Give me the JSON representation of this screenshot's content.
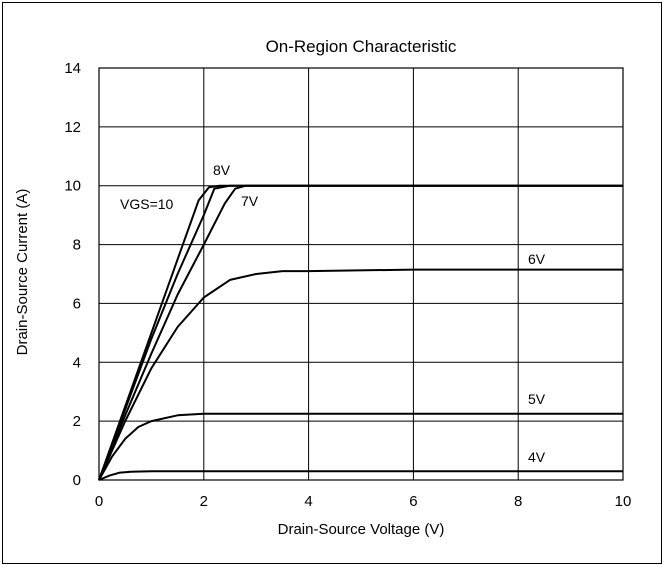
{
  "chart_data": {
    "type": "line",
    "title": "On-Region Characteristic",
    "xlabel": "Drain-Source Voltage (V)",
    "ylabel": "Drain-Source Current (A)",
    "xlim": [
      0,
      10
    ],
    "ylim": [
      0,
      14
    ],
    "x_ticks": [
      0,
      2,
      4,
      6,
      8,
      10
    ],
    "y_ticks": [
      0,
      2,
      4,
      6,
      8,
      10,
      12,
      14
    ],
    "grid": true,
    "line_color": "#000000",
    "series": [
      {
        "name": "VGS=10",
        "x": [
          0,
          0.5,
          1.0,
          1.5,
          1.9,
          2.1,
          2.3,
          4,
          6,
          8,
          10
        ],
        "values": [
          0,
          2.5,
          5.0,
          7.5,
          9.5,
          9.95,
          10,
          10,
          10,
          10,
          10
        ]
      },
      {
        "name": "8V",
        "x": [
          0,
          0.5,
          1.0,
          1.5,
          2.0,
          2.2,
          2.5,
          4,
          6,
          8,
          10
        ],
        "values": [
          0,
          2.4,
          4.8,
          7.0,
          9.0,
          9.9,
          10,
          10,
          10,
          10,
          10
        ]
      },
      {
        "name": "7V",
        "x": [
          0,
          0.5,
          1.0,
          1.5,
          2.0,
          2.4,
          2.6,
          2.8,
          4,
          6,
          8,
          10
        ],
        "values": [
          0,
          2.2,
          4.3,
          6.3,
          8.0,
          9.4,
          9.9,
          10,
          10,
          10,
          10,
          10
        ]
      },
      {
        "name": "6V",
        "x": [
          0,
          0.5,
          1.0,
          1.5,
          2.0,
          2.5,
          3.0,
          3.5,
          4,
          6,
          8,
          10
        ],
        "values": [
          0,
          2.0,
          3.8,
          5.2,
          6.2,
          6.8,
          7.0,
          7.1,
          7.1,
          7.15,
          7.15,
          7.15
        ]
      },
      {
        "name": "5V",
        "x": [
          0,
          0.25,
          0.5,
          0.75,
          1.0,
          1.5,
          2.0,
          4,
          6,
          8,
          10
        ],
        "values": [
          0,
          0.8,
          1.4,
          1.8,
          2.0,
          2.2,
          2.25,
          2.25,
          2.25,
          2.25,
          2.25
        ]
      },
      {
        "name": "4V",
        "x": [
          0,
          0.2,
          0.4,
          0.6,
          1.0,
          2.0,
          4,
          6,
          8,
          10
        ],
        "values": [
          0,
          0.15,
          0.25,
          0.28,
          0.3,
          0.3,
          0.3,
          0.3,
          0.3,
          0.3
        ]
      }
    ],
    "labels": [
      "VGS=10",
      "8V",
      "7V",
      "6V",
      "5V",
      "4V"
    ]
  }
}
